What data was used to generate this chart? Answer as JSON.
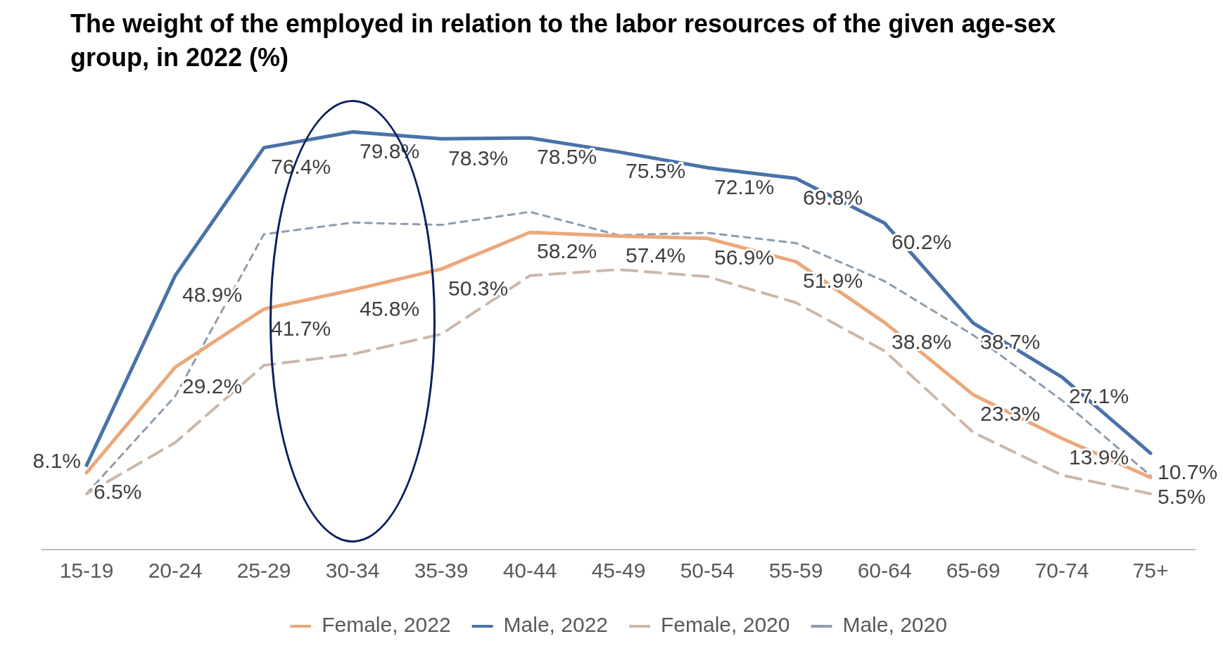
{
  "chart_data": {
    "type": "line",
    "title": "The weight of the employed in relation to the labor resources of the given age-sex group, in 2022 (%)",
    "categories": [
      "15-19",
      "20-24",
      "25-29",
      "30-34",
      "35-39",
      "40-44",
      "45-49",
      "50-54",
      "55-59",
      "60-64",
      "65-69",
      "70-74",
      "75+"
    ],
    "tick_labels": "x",
    "grid": false,
    "legend": "bottom",
    "marker": "none",
    "series": [
      {
        "name": "Female, 2022",
        "color": "#eaa87c",
        "line_style": "solid",
        "values": [
          6.5,
          29.2,
          41.7,
          45.8,
          50.3,
          58.2,
          57.4,
          56.9,
          51.9,
          38.8,
          23.3,
          13.9,
          5.5
        ],
        "value_labels": [
          "6.5%",
          "29.2%",
          "41.7%",
          "45.8%",
          "50.3%",
          "58.2%",
          "57.4%",
          "56.9%",
          "51.9%",
          "38.8%",
          "23.3%",
          "13.9%",
          "5.5%"
        ]
      },
      {
        "name": "Male, 2022",
        "color": "#4a72a8",
        "line_style": "solid",
        "values": [
          8.1,
          48.9,
          76.4,
          79.8,
          78.3,
          78.5,
          75.5,
          72.1,
          69.8,
          60.2,
          38.7,
          27.1,
          10.7
        ],
        "value_labels": [
          "8.1%",
          "48.9%",
          "76.4%",
          "79.8%",
          "78.3%",
          "78.5%",
          "75.5%",
          "72.1%",
          "69.8%",
          "60.2%",
          "38.7%",
          "27.1%",
          "10.7%"
        ]
      },
      {
        "name": "Female, 2020",
        "color": "#cbb8aa",
        "line_style": "dashed",
        "values": [
          2,
          13,
          29.6,
          32,
          36.3,
          48.9,
          50.2,
          48.7,
          43.1,
          32.7,
          15.2,
          6,
          2
        ]
      },
      {
        "name": "Male, 2020",
        "color": "#8e9dad",
        "line_style": "dotted",
        "values": [
          2,
          23,
          57.8,
          60.3,
          59.8,
          62.6,
          57.6,
          58.1,
          55.9,
          47.7,
          36.1,
          22.1,
          5.9
        ]
      }
    ]
  }
}
